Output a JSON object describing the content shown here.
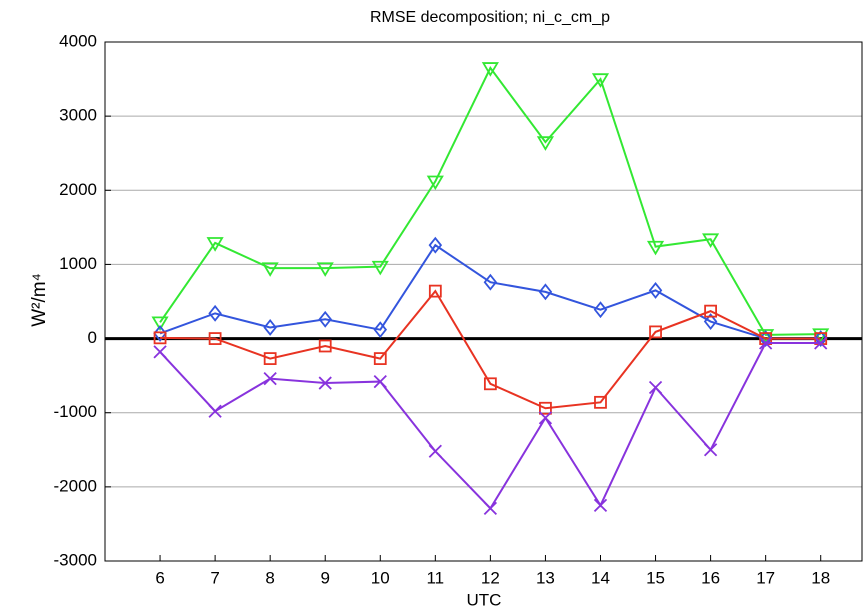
{
  "chart_data": {
    "type": "line",
    "title": "RMSE decomposition; ni_c_cm_p",
    "xlabel": "UTC",
    "ylabel": "W²/m⁴",
    "x": [
      6,
      7,
      8,
      9,
      10,
      11,
      12,
      13,
      14,
      15,
      16,
      17,
      18
    ],
    "xlim": [
      5,
      18.75
    ],
    "xticks": [
      6,
      7,
      8,
      9,
      10,
      11,
      12,
      13,
      14,
      15,
      16,
      17,
      18
    ],
    "ylim": [
      -3000,
      4000
    ],
    "yticks": [
      -3000,
      -2000,
      -1000,
      0,
      1000,
      2000,
      3000,
      4000
    ],
    "grid": true,
    "zero_line": true,
    "series": [
      {
        "color": "#33e833",
        "marker": "triangle-down",
        "values": [
          220,
          1290,
          950,
          950,
          970,
          2120,
          3650,
          2650,
          3500,
          1240,
          1340,
          50,
          60
        ]
      },
      {
        "color": "#3355dd",
        "marker": "diamond",
        "values": [
          70,
          340,
          150,
          260,
          120,
          1260,
          760,
          630,
          390,
          650,
          230,
          0,
          0
        ]
      },
      {
        "color": "#e83322",
        "marker": "square",
        "values": [
          10,
          0,
          -270,
          -100,
          -270,
          640,
          -610,
          -940,
          -860,
          90,
          370,
          0,
          0
        ]
      },
      {
        "color": "#8833dd",
        "marker": "x",
        "values": [
          -180,
          -980,
          -540,
          -600,
          -580,
          -1520,
          -2290,
          -1070,
          -2250,
          -660,
          -1500,
          -60,
          -60
        ]
      }
    ]
  }
}
